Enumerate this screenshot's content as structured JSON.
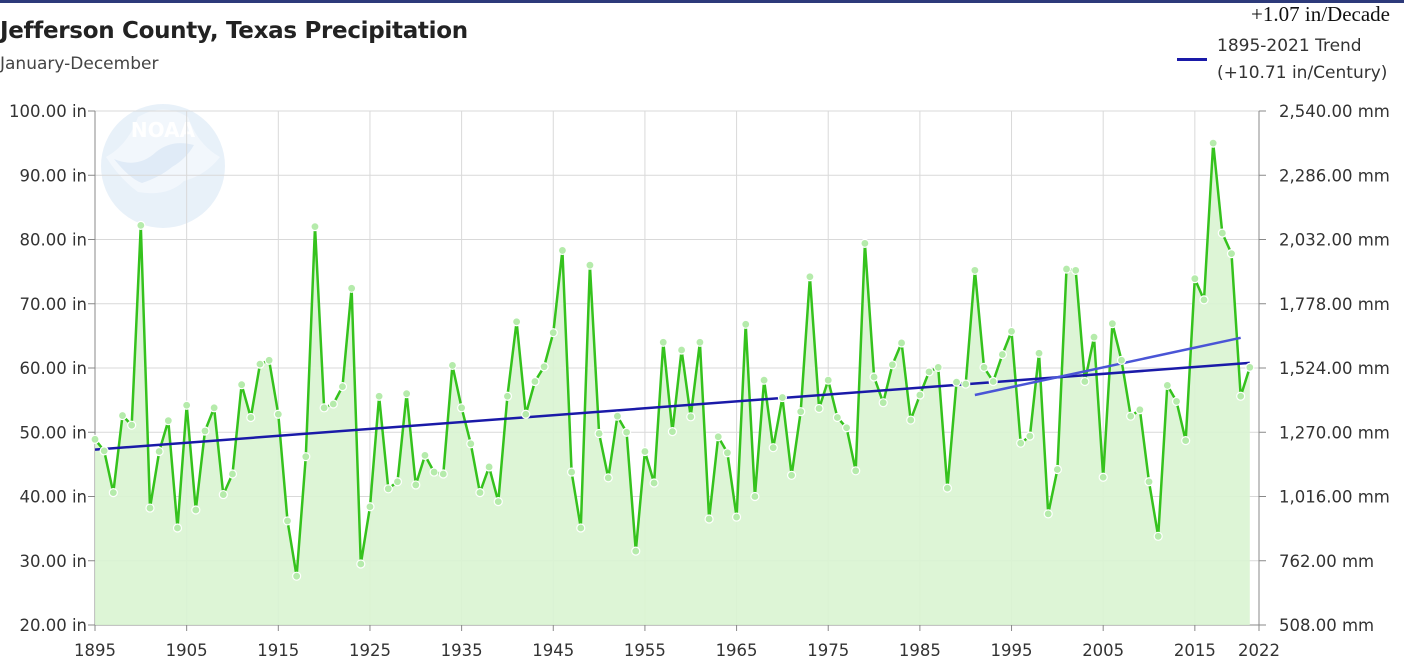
{
  "header": {
    "title": "Jefferson County, Texas Precipitation",
    "subtitle": "January-December",
    "decade_label": "+1.07 in/Decade"
  },
  "legend": {
    "line1": "1895-2021 Trend",
    "line2": "(+10.71 in/Century)"
  },
  "logo": {
    "text": "NOAA"
  },
  "colors": {
    "series": "#35c21d",
    "fill": "#d9f4d2",
    "trend": "#1a1aa8",
    "trend_light": "#9ea8ef",
    "grid": "#d9d9d9"
  },
  "chart_data": {
    "type": "line",
    "title": "Jefferson County, Texas Precipitation",
    "subtitle": "January-December",
    "x_ticks": [
      "1895",
      "1905",
      "1915",
      "1925",
      "1935",
      "1945",
      "1955",
      "1965",
      "1975",
      "1985",
      "1995",
      "2005",
      "2015",
      "2022"
    ],
    "y_ticks_left": [
      "100.00 in",
      "90.00 in",
      "80.00 in",
      "70.00 in",
      "60.00 in",
      "50.00 in",
      "40.00 in",
      "30.00 in",
      "20.00 in"
    ],
    "y_ticks_right": [
      "2,540.00 mm",
      "2,286.00 mm",
      "2,032.00 mm",
      "1,778.00 mm",
      "1,524.00 mm",
      "1,270.00 mm",
      "1,016.00 mm",
      "762.00 mm",
      "508.00 mm"
    ],
    "xlim": [
      1895,
      2022
    ],
    "ylim": [
      20,
      100
    ],
    "grid": true,
    "series": [
      {
        "name": "Precipitation",
        "x_start": 1895,
        "values": [
          48.9,
          47.1,
          40.6,
          52.6,
          51.1,
          82.2,
          38.2,
          47.0,
          51.8,
          35.1,
          54.2,
          37.9,
          50.2,
          53.8,
          40.3,
          43.5,
          57.4,
          52.3,
          60.6,
          61.2,
          52.8,
          36.2,
          27.6,
          46.2,
          82.0,
          53.8,
          54.4,
          57.1,
          72.4,
          29.5,
          38.4,
          55.6,
          41.2,
          42.3,
          56.0,
          41.8,
          46.4,
          43.8,
          43.5,
          60.4,
          53.8,
          48.2,
          40.6,
          44.6,
          39.2,
          55.6,
          67.2,
          52.8,
          57.9,
          60.2,
          65.5,
          78.3,
          43.8,
          35.1,
          76.0,
          49.8,
          42.9,
          52.5,
          50.0,
          31.5,
          47.0,
          42.1,
          64.0,
          50.1,
          62.8,
          52.4,
          64.0,
          36.5,
          49.3,
          46.8,
          36.8,
          66.8,
          40.0,
          58.1,
          47.6,
          55.4,
          43.3,
          53.2,
          74.2,
          53.7,
          58.1,
          52.3,
          50.7,
          44.0,
          79.4,
          58.6,
          54.6,
          60.5,
          63.9,
          51.9,
          55.8,
          59.4,
          60.1,
          41.3,
          57.8,
          57.5,
          75.2,
          60.1,
          57.9,
          62.1,
          65.7,
          48.3,
          49.4,
          62.3,
          37.3,
          44.2,
          75.4,
          75.2,
          57.9,
          64.8,
          43.0,
          66.9,
          61.2,
          52.5,
          53.5,
          42.3,
          33.8,
          57.3,
          54.8,
          48.7,
          73.9,
          70.6,
          95.0,
          81.0,
          77.8,
          55.6,
          60.1
        ]
      }
    ],
    "trend": {
      "name": "1895-2021 Trend",
      "label": "(+10.71 in/Century)",
      "start": [
        1895,
        47.3
      ],
      "end": [
        2021,
        60.8
      ]
    },
    "recent_trend": {
      "start": [
        1991,
        55.8
      ],
      "end": [
        2020,
        64.7
      ]
    }
  }
}
